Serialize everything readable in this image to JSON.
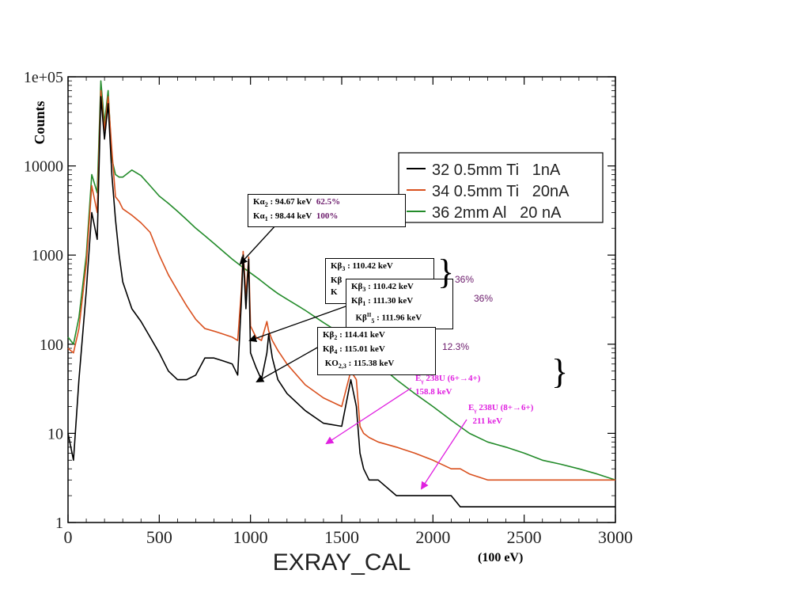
{
  "chart_data": {
    "type": "line",
    "xlabel": "EXRAY_CAL",
    "ylabel": "Counts",
    "x_unit_note": "(100 eV)",
    "xlim": [
      0,
      3000
    ],
    "ylim": [
      1,
      100000
    ],
    "yscale": "log",
    "xticks": [
      "0",
      "500",
      "1000",
      "1500",
      "2000",
      "2500",
      "3000"
    ],
    "yticks": [
      "1",
      "10",
      "100",
      "1000",
      "10000",
      "1e+05"
    ],
    "legend_position": "top-right",
    "series": [
      {
        "name": "32 0.5mm Ti   1nA",
        "color": "#000000",
        "x": [
          0,
          30,
          60,
          100,
          130,
          160,
          180,
          200,
          220,
          240,
          260,
          280,
          300,
          350,
          400,
          450,
          500,
          550,
          600,
          650,
          700,
          750,
          800,
          850,
          900,
          930,
          950,
          960,
          975,
          990,
          1000,
          1030,
          1060,
          1090,
          1100,
          1120,
          1150,
          1200,
          1300,
          1400,
          1500,
          1550,
          1580,
          1600,
          1620,
          1650,
          1700,
          1800,
          1900,
          2000,
          2100,
          2150,
          2200,
          2300,
          2400,
          2500,
          2600,
          2700,
          2800,
          2900,
          3000
        ],
        "y": [
          10,
          5,
          40,
          400,
          3000,
          1500,
          60000,
          20000,
          50000,
          8000,
          2500,
          1000,
          500,
          250,
          180,
          120,
          80,
          50,
          40,
          40,
          45,
          70,
          70,
          65,
          60,
          45,
          300,
          1000,
          250,
          900,
          80,
          55,
          40,
          80,
          130,
          70,
          40,
          28,
          18,
          13,
          12,
          40,
          20,
          6,
          4,
          3,
          3,
          2,
          2,
          2,
          2,
          1.5,
          1.5,
          1.5,
          1.5,
          1.5,
          1.5,
          1.5,
          1.5,
          1.5,
          1.5
        ]
      },
      {
        "name": "34 0.5mm Ti   20nA",
        "color": "#d9501e",
        "x": [
          0,
          30,
          60,
          100,
          130,
          160,
          180,
          200,
          220,
          240,
          260,
          280,
          300,
          350,
          400,
          450,
          500,
          550,
          600,
          650,
          700,
          750,
          800,
          850,
          900,
          930,
          950,
          960,
          975,
          990,
          1000,
          1030,
          1060,
          1090,
          1100,
          1120,
          1150,
          1200,
          1300,
          1400,
          1500,
          1550,
          1580,
          1600,
          1620,
          1650,
          1700,
          1800,
          1900,
          2000,
          2100,
          2150,
          2200,
          2300,
          2400,
          2500,
          2600,
          2700,
          2800,
          2900,
          3000
        ],
        "y": [
          90,
          80,
          150,
          800,
          6000,
          3000,
          70000,
          25000,
          60000,
          15000,
          4500,
          4000,
          3300,
          2800,
          2300,
          1800,
          1000,
          600,
          400,
          270,
          190,
          150,
          140,
          130,
          120,
          110,
          400,
          1100,
          350,
          950,
          160,
          120,
          110,
          180,
          140,
          110,
          85,
          60,
          35,
          25,
          20,
          50,
          40,
          12,
          10,
          9,
          8,
          7,
          6,
          5,
          4,
          4,
          3.5,
          3,
          3,
          3,
          3,
          3,
          3,
          3,
          3
        ]
      },
      {
        "name": "36 2mm Al   20 nA",
        "color": "#238b2a",
        "x": [
          0,
          30,
          60,
          100,
          130,
          160,
          180,
          200,
          220,
          240,
          260,
          280,
          300,
          350,
          400,
          450,
          500,
          550,
          600,
          650,
          700,
          750,
          800,
          850,
          900,
          950,
          1000,
          1050,
          1100,
          1150,
          1200,
          1300,
          1400,
          1500,
          1550,
          1600,
          1650,
          1700,
          1800,
          1900,
          2000,
          2100,
          2200,
          2300,
          2400,
          2500,
          2600,
          2700,
          2800,
          2900,
          3000
        ],
        "y": [
          120,
          100,
          200,
          1000,
          8000,
          5000,
          90000,
          30000,
          70000,
          12000,
          8000,
          7500,
          7500,
          9000,
          7800,
          6000,
          4600,
          3800,
          3100,
          2500,
          2000,
          1650,
          1350,
          1100,
          900,
          750,
          630,
          530,
          440,
          370,
          320,
          240,
          175,
          130,
          110,
          95,
          80,
          60,
          40,
          28,
          20,
          14,
          10,
          8,
          7,
          6,
          5,
          4.5,
          4,
          3.5,
          3
        ]
      }
    ],
    "annotations": {
      "ka": {
        "line1_label": "Kα",
        "line1_sub": "2",
        "line1_val": " : 94.67 keV",
        "line1_pct": "62.5%",
        "line2_label": "Kα",
        "line2_sub": "1",
        "line2_val": " : 98.44 keV",
        "line2_pct": "100%"
      },
      "kb_back": {
        "line1": "Kβ",
        "line1_sub": "3",
        "line1_val": " : 110.42 keV",
        "line2": "Kβ",
        "line3": "K"
      },
      "kb_front": {
        "line1": "Kβ",
        "line1_sub": "3",
        "line1_val": " : 110.42 keV",
        "line2": "Kβ",
        "line2_sub": "1",
        "line2_val": " : 111.30 keV",
        "line3": "Kβ",
        "line3_sup": "II",
        "line3_sub": "5",
        "line3_val": " : 111.96 keV"
      },
      "kb2": {
        "line1": "Kβ",
        "line1_sub": "2",
        "line1_val": " : 114.41 keV",
        "line2": "Kβ",
        "line2_sub": "4",
        "line2_val": " : 115.01 keV",
        "line3": "KO",
        "line3_sub": "2,3",
        "line3_val": " : 115.38 keV"
      },
      "pct_36a": "36%",
      "pct_36b": "36%",
      "pct_12": "12.3%",
      "gamma1": {
        "e": "E",
        "sub": "γ",
        "line1_rest": " 238U (6+→4+)",
        "line2": "158.8 keV"
      },
      "gamma2": {
        "e": "E",
        "sub": "γ",
        "line1_rest": " 238U (8+→6+)",
        "line2": "211 keV"
      }
    }
  }
}
